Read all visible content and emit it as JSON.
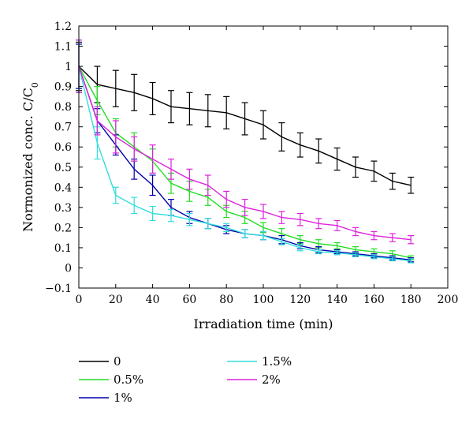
{
  "chart_data": {
    "type": "line",
    "xlabel": "Irradiation time (min)",
    "ylabel": "Normonized conc. C/C",
    "ylabel_sub": "0",
    "xlim": [
      0,
      200
    ],
    "ylim": [
      -0.1,
      1.2
    ],
    "x_ticks": [
      "0",
      "20",
      "40",
      "60",
      "80",
      "100",
      "120",
      "140",
      "160",
      "180",
      "200"
    ],
    "y_ticks": [
      "−0.1",
      "0",
      "0.1",
      "0.2",
      "0.3",
      "0.4",
      "0.5",
      "0.6",
      "0.7",
      "0.8",
      "0.9",
      "1",
      "1.1",
      "1.2"
    ],
    "x": [
      0,
      10,
      20,
      30,
      40,
      50,
      60,
      70,
      80,
      90,
      100,
      110,
      120,
      130,
      140,
      150,
      160,
      170,
      180
    ],
    "legend_placement": "bottom",
    "series": [
      {
        "name": "0",
        "color": "#000000",
        "values": [
          1.0,
          0.91,
          0.89,
          0.87,
          0.84,
          0.8,
          0.79,
          0.78,
          0.77,
          0.74,
          0.71,
          0.65,
          0.61,
          0.58,
          0.54,
          0.5,
          0.48,
          0.43,
          0.41
        ],
        "errors": [
          0.12,
          0.09,
          0.09,
          0.09,
          0.08,
          0.08,
          0.08,
          0.08,
          0.08,
          0.08,
          0.07,
          0.07,
          0.06,
          0.06,
          0.055,
          0.05,
          0.05,
          0.04,
          0.04
        ]
      },
      {
        "name": "0.5%",
        "color": "#22dd22",
        "values": [
          1.0,
          0.83,
          0.67,
          0.6,
          0.53,
          0.42,
          0.38,
          0.35,
          0.28,
          0.25,
          0.2,
          0.17,
          0.14,
          0.12,
          0.11,
          0.09,
          0.08,
          0.07,
          0.05
        ],
        "errors": [
          0.13,
          0.07,
          0.07,
          0.07,
          0.06,
          0.05,
          0.05,
          0.04,
          0.03,
          0.03,
          0.025,
          0.025,
          0.02,
          0.02,
          0.015,
          0.015,
          0.015,
          0.015,
          0.01
        ]
      },
      {
        "name": "1%",
        "color": "#0000aa",
        "values": [
          1.0,
          0.73,
          0.61,
          0.49,
          0.41,
          0.3,
          0.25,
          0.22,
          0.19,
          0.17,
          0.16,
          0.14,
          0.11,
          0.09,
          0.08,
          0.07,
          0.06,
          0.05,
          0.04
        ],
        "errors": [
          0.11,
          0.06,
          0.05,
          0.05,
          0.05,
          0.04,
          0.03,
          0.025,
          0.02,
          0.02,
          0.02,
          0.02,
          0.015,
          0.015,
          0.01,
          0.01,
          0.01,
          0.01,
          0.01
        ]
      },
      {
        "name": "1.5%",
        "color": "#33dddd",
        "values": [
          1.0,
          0.62,
          0.36,
          0.31,
          0.27,
          0.26,
          0.24,
          0.22,
          0.2,
          0.17,
          0.16,
          0.13,
          0.1,
          0.08,
          0.075,
          0.065,
          0.055,
          0.045,
          0.035
        ],
        "errors": [
          0.13,
          0.08,
          0.04,
          0.04,
          0.035,
          0.03,
          0.03,
          0.025,
          0.02,
          0.02,
          0.02,
          0.015,
          0.015,
          0.01,
          0.01,
          0.01,
          0.01,
          0.01,
          0.01
        ]
      },
      {
        "name": "2%",
        "color": "#dd22dd",
        "values": [
          1.0,
          0.73,
          0.65,
          0.59,
          0.54,
          0.49,
          0.44,
          0.41,
          0.34,
          0.3,
          0.28,
          0.25,
          0.24,
          0.22,
          0.21,
          0.18,
          0.16,
          0.15,
          0.14
        ],
        "errors": [
          0.13,
          0.07,
          0.08,
          0.06,
          0.07,
          0.05,
          0.05,
          0.05,
          0.04,
          0.04,
          0.035,
          0.03,
          0.03,
          0.025,
          0.025,
          0.02,
          0.02,
          0.02,
          0.02
        ]
      }
    ]
  }
}
